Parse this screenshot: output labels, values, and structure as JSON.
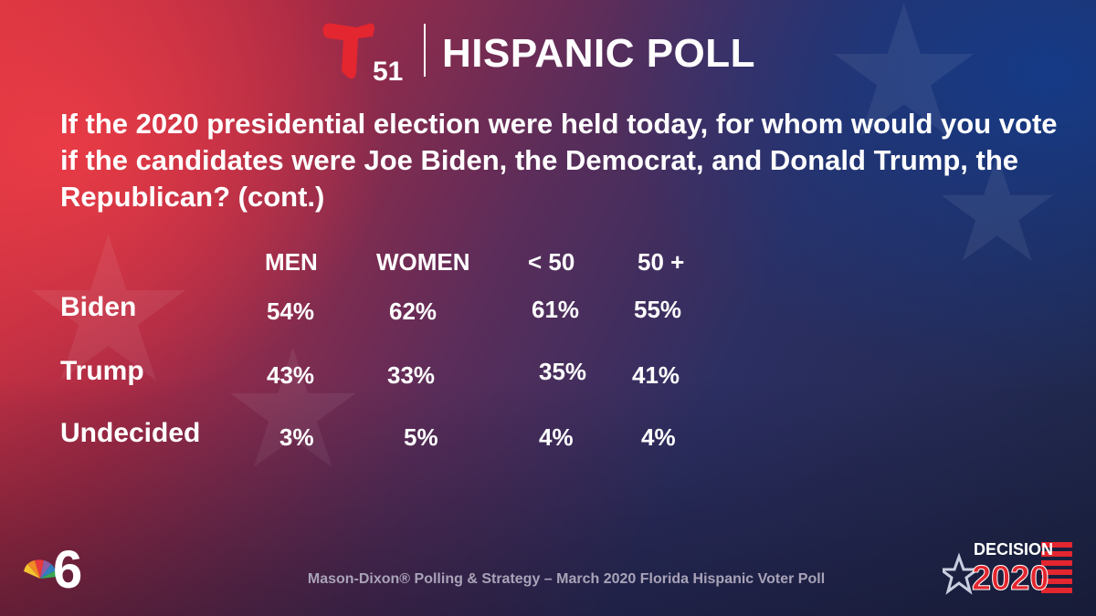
{
  "header": {
    "logo_number": "51",
    "title": "HISPANIC POLL"
  },
  "question": "If the 2020 presidential election were held today, for whom would you vote if the candidates were Joe Biden, the Democrat, and Donald Trump, the Republican? (cont.)",
  "chart_data": {
    "type": "table",
    "columns": [
      "MEN",
      "WOMEN",
      "< 50",
      "50 +"
    ],
    "rows": [
      {
        "label": "Biden",
        "values": [
          "54%",
          "62%",
          "61%",
          "55%"
        ]
      },
      {
        "label": "Trump",
        "values": [
          "43%",
          "33%",
          "35%",
          "41%"
        ]
      },
      {
        "label": "Undecided",
        "values": [
          "3%",
          "5%",
          "4%",
          "4%"
        ]
      }
    ]
  },
  "footer": {
    "source": "Mason-Dixon® Polling & Strategy – March 2020 Florida Hispanic Voter Poll"
  },
  "logos": {
    "station_logo_number": "6",
    "decision_word": "DECISION",
    "decision_year": "2020"
  },
  "colors": {
    "telemundo_red": "#e3262f",
    "background_red": "#d8343f",
    "background_blue": "#1d2648",
    "text": "#ffffff",
    "footer_text": "#a9a3b8"
  }
}
